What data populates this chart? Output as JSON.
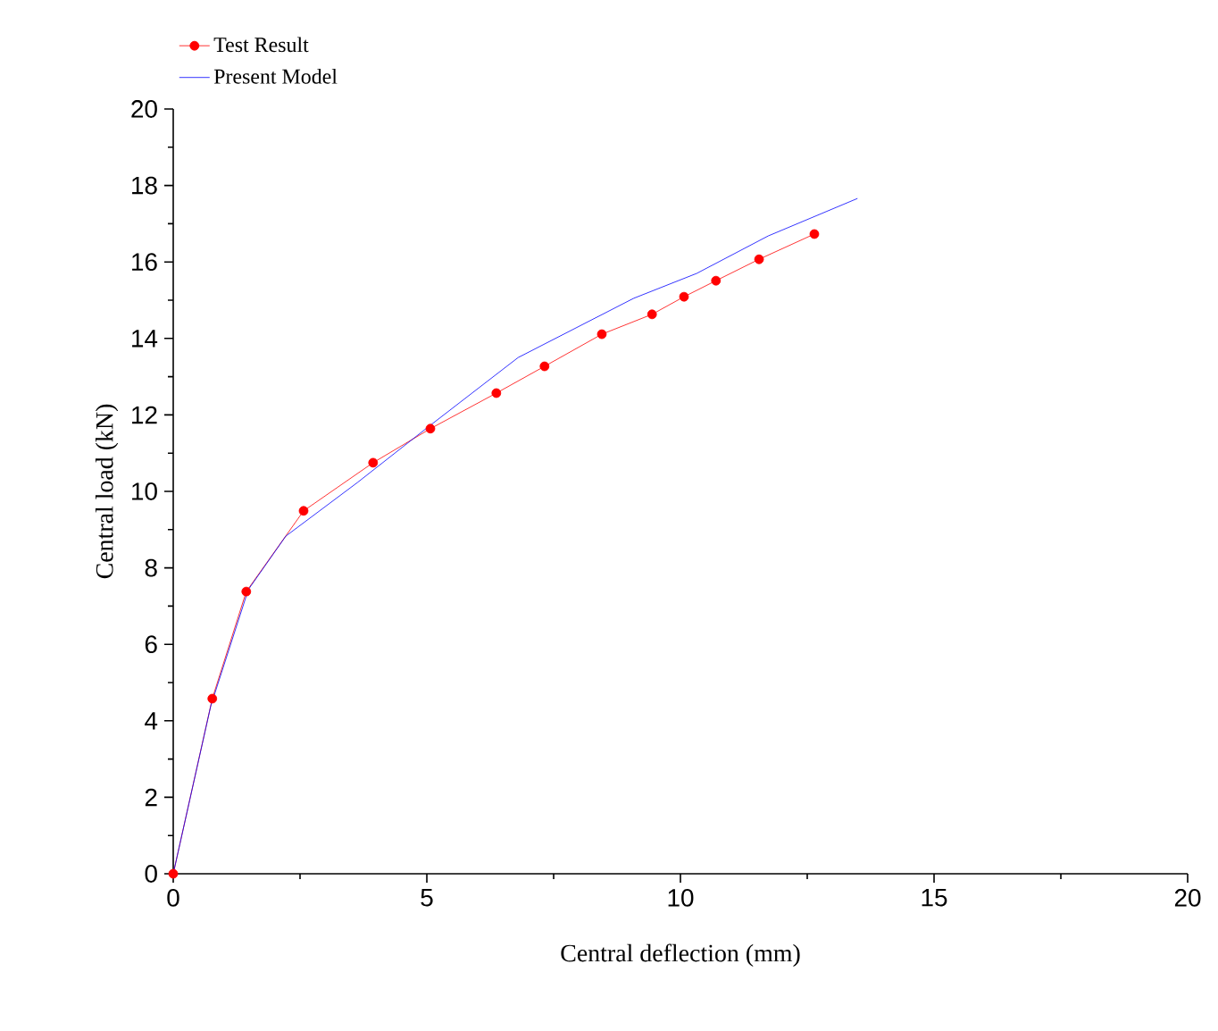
{
  "chart_data": {
    "type": "line",
    "xlabel": "Central deflection (mm)",
    "ylabel": "Central load (kN)",
    "xlim": [
      0,
      20
    ],
    "ylim": [
      0,
      20
    ],
    "xticks": [
      0,
      5,
      10,
      15,
      20
    ],
    "yticks": [
      0,
      2,
      4,
      6,
      8,
      10,
      12,
      14,
      16,
      18,
      20
    ],
    "legend": "top",
    "grid": false,
    "series": [
      {
        "name": "Test Result",
        "color": "#ff0000",
        "marker": "circle",
        "x": [
          0,
          0.77,
          1.44,
          2.57,
          3.94,
          5.07,
          6.37,
          7.32,
          8.45,
          9.44,
          10.07,
          10.7,
          11.55,
          12.64
        ],
        "values": [
          0,
          4.58,
          7.38,
          9.49,
          10.75,
          11.64,
          12.57,
          13.27,
          14.11,
          14.63,
          15.09,
          15.51,
          16.07,
          16.73
        ]
      },
      {
        "name": "Present Model",
        "color": "#0000ff",
        "marker": "none",
        "x": [
          0,
          0.74,
          1.48,
          2.22,
          3.63,
          5.07,
          6.8,
          9.08,
          10.32,
          11.73,
          13.49
        ],
        "values": [
          0,
          4.39,
          7.43,
          8.83,
          10.23,
          11.73,
          13.5,
          15.05,
          15.7,
          16.68,
          17.66
        ]
      }
    ]
  }
}
